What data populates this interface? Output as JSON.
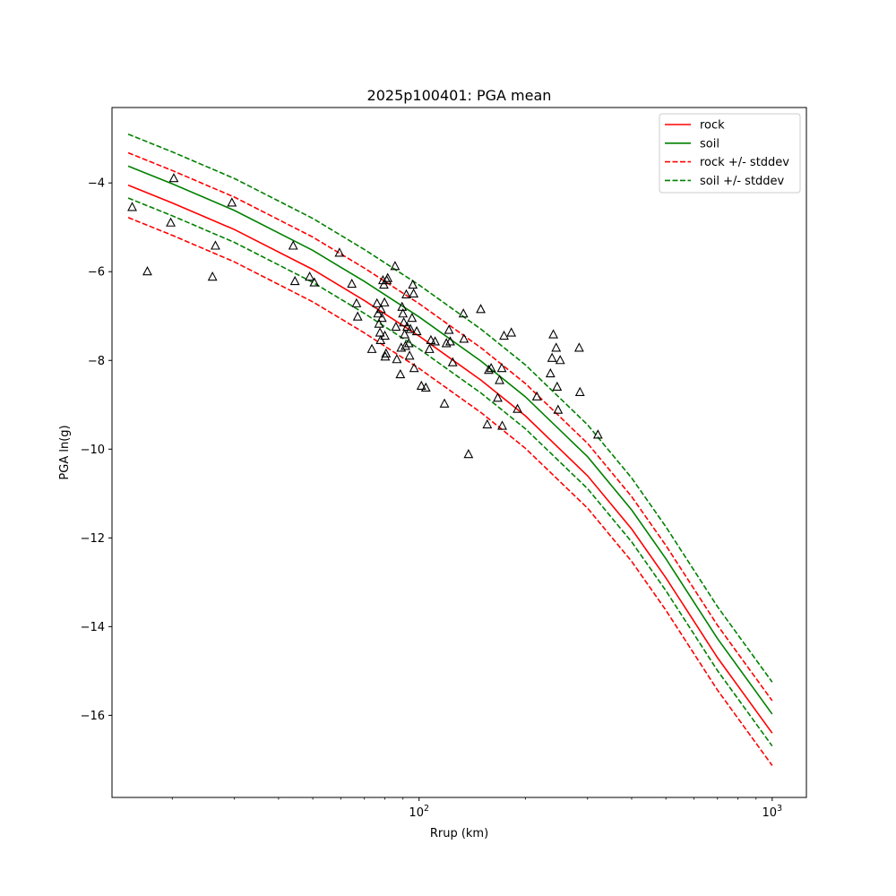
{
  "chart_data": {
    "type": "scatter",
    "title": "2025p100401: PGA mean",
    "xlabel": "Rrup (km)",
    "ylabel": "PGA ln(g)",
    "xscale": "log",
    "xlim": [
      13.5,
      1250
    ],
    "ylim": [
      -17.85,
      -2.3
    ],
    "x_ticks": [
      {
        "value": 100,
        "base": "10",
        "exp": "2"
      },
      {
        "value": 1000,
        "base": "10",
        "exp": "3"
      }
    ],
    "y_ticks": [
      {
        "value": -4,
        "label": "−4"
      },
      {
        "value": -6,
        "label": "−6"
      },
      {
        "value": -8,
        "label": "−8"
      },
      {
        "value": -10,
        "label": "−10"
      },
      {
        "value": -12,
        "label": "−12"
      },
      {
        "value": -14,
        "label": "−14"
      },
      {
        "value": -16,
        "label": "−16"
      }
    ],
    "grid": false,
    "legend_position": "top-right",
    "legend": [
      {
        "label": "rock",
        "color": "#ff0000",
        "dash": "solid"
      },
      {
        "label": "soil",
        "color": "#008000",
        "dash": "solid"
      },
      {
        "label": "rock +/- stddev",
        "color": "#ff0000",
        "dash": "dashed"
      },
      {
        "label": "soil +/- stddev",
        "color": "#008000",
        "dash": "dashed"
      }
    ],
    "series": [
      {
        "name": "rock",
        "color": "#ff0000",
        "dash": "solid",
        "x": [
          15,
          20,
          30,
          50,
          70,
          100,
          150,
          200,
          300,
          400,
          500,
          700,
          1000
        ],
        "y": [
          -4.05,
          -4.45,
          -5.05,
          -5.95,
          -6.65,
          -7.45,
          -8.45,
          -9.25,
          -10.6,
          -11.8,
          -12.9,
          -14.7,
          -16.4
        ]
      },
      {
        "name": "soil",
        "color": "#008000",
        "dash": "solid",
        "x": [
          15,
          20,
          30,
          50,
          70,
          100,
          150,
          200,
          300,
          400,
          500,
          700,
          1000
        ],
        "y": [
          -3.62,
          -4.02,
          -4.62,
          -5.52,
          -6.22,
          -7.02,
          -8.02,
          -8.82,
          -10.17,
          -11.37,
          -12.47,
          -14.27,
          -15.97
        ]
      },
      {
        "name": "rock +/- stddev",
        "color": "#ff0000",
        "dash": "dashed",
        "x": [
          15,
          20,
          30,
          50,
          70,
          100,
          150,
          200,
          300,
          400,
          500,
          700,
          1000
        ],
        "y": [
          -3.32,
          -3.72,
          -4.32,
          -5.22,
          -5.92,
          -6.72,
          -7.72,
          -8.52,
          -9.87,
          -11.07,
          -12.17,
          -13.97,
          -15.67
        ]
      },
      {
        "name": "rock +/- stddev",
        "color": "#ff0000",
        "dash": "dashed",
        "x": [
          15,
          20,
          30,
          50,
          70,
          100,
          150,
          200,
          300,
          400,
          500,
          700,
          1000
        ],
        "y": [
          -4.78,
          -5.18,
          -5.78,
          -6.68,
          -7.38,
          -8.18,
          -9.18,
          -9.98,
          -11.33,
          -12.53,
          -13.63,
          -15.43,
          -17.13
        ]
      },
      {
        "name": "soil +/- stddev",
        "color": "#008000",
        "dash": "dashed",
        "x": [
          15,
          20,
          30,
          50,
          70,
          100,
          150,
          200,
          300,
          400,
          500,
          700,
          1000
        ],
        "y": [
          -2.9,
          -3.3,
          -3.9,
          -4.8,
          -5.5,
          -6.3,
          -7.3,
          -8.1,
          -9.45,
          -10.65,
          -11.75,
          -13.55,
          -15.25
        ]
      },
      {
        "name": "soil +/- stddev",
        "color": "#008000",
        "dash": "dashed",
        "x": [
          15,
          20,
          30,
          50,
          70,
          100,
          150,
          200,
          300,
          400,
          500,
          700,
          1000
        ],
        "y": [
          -4.34,
          -4.74,
          -5.34,
          -6.24,
          -6.94,
          -7.74,
          -8.74,
          -9.54,
          -10.89,
          -12.09,
          -13.19,
          -14.99,
          -16.69
        ]
      }
    ],
    "observations": {
      "marker": "triangle",
      "color": "#000000",
      "points": [
        [
          15.4,
          -4.55
        ],
        [
          17.0,
          -6.0
        ],
        [
          19.8,
          -4.9
        ],
        [
          20.2,
          -3.9
        ],
        [
          26.0,
          -6.12
        ],
        [
          26.5,
          -5.42
        ],
        [
          29.5,
          -4.45
        ],
        [
          44.0,
          -5.42
        ],
        [
          44.5,
          -6.22
        ],
        [
          49.0,
          -6.12
        ],
        [
          50.5,
          -6.25
        ],
        [
          59.5,
          -5.58
        ],
        [
          64.5,
          -6.28
        ],
        [
          66.5,
          -6.72
        ],
        [
          67.0,
          -7.02
        ],
        [
          73.5,
          -7.75
        ],
        [
          76.0,
          -6.72
        ],
        [
          76.5,
          -6.95
        ],
        [
          77.0,
          -7.18
        ],
        [
          77.5,
          -7.38
        ],
        [
          77.8,
          -7.55
        ],
        [
          78.0,
          -6.85
        ],
        [
          78.5,
          -7.05
        ],
        [
          79.0,
          -6.2
        ],
        [
          79.5,
          -6.3
        ],
        [
          79.8,
          -6.7
        ],
        [
          80.0,
          -7.45
        ],
        [
          80.2,
          -7.92
        ],
        [
          80.6,
          -7.85
        ],
        [
          81.0,
          -6.2
        ],
        [
          81.5,
          -6.15
        ],
        [
          85.5,
          -5.88
        ],
        [
          86.0,
          -7.25
        ],
        [
          86.5,
          -7.98
        ],
        [
          88.5,
          -8.32
        ],
        [
          89.0,
          -7.72
        ],
        [
          89.5,
          -6.8
        ],
        [
          90.0,
          -6.95
        ],
        [
          90.5,
          -7.15
        ],
        [
          91.0,
          -7.42
        ],
        [
          91.5,
          -7.68
        ],
        [
          92.0,
          -6.52
        ],
        [
          92.5,
          -7.25
        ],
        [
          93.5,
          -7.62
        ],
        [
          94.0,
          -7.9
        ],
        [
          94.5,
          -7.3
        ],
        [
          95.5,
          -7.05
        ],
        [
          96.0,
          -6.3
        ],
        [
          96.5,
          -6.5
        ],
        [
          96.8,
          -8.18
        ],
        [
          98.5,
          -7.35
        ],
        [
          101.5,
          -8.58
        ],
        [
          104.5,
          -8.62
        ],
        [
          107.0,
          -7.75
        ],
        [
          108.0,
          -7.55
        ],
        [
          111.0,
          -7.58
        ],
        [
          118.0,
          -8.98
        ],
        [
          119.5,
          -7.62
        ],
        [
          121.5,
          -7.32
        ],
        [
          122.5,
          -7.58
        ],
        [
          124.5,
          -8.05
        ],
        [
          133.5,
          -6.95
        ],
        [
          134.0,
          -7.52
        ],
        [
          138.0,
          -10.12
        ],
        [
          149.5,
          -6.85
        ],
        [
          156.0,
          -9.45
        ],
        [
          157.5,
          -8.22
        ],
        [
          160.0,
          -8.18
        ],
        [
          167.0,
          -8.85
        ],
        [
          169.0,
          -8.45
        ],
        [
          171.5,
          -8.18
        ],
        [
          172.0,
          -9.48
        ],
        [
          174.0,
          -7.45
        ],
        [
          182.5,
          -7.38
        ],
        [
          190.0,
          -9.1
        ],
        [
          215.5,
          -8.82
        ],
        [
          235.5,
          -8.3
        ],
        [
          238.0,
          -7.95
        ],
        [
          240.0,
          -7.42
        ],
        [
          244.5,
          -7.72
        ],
        [
          246.0,
          -8.6
        ],
        [
          247.5,
          -9.12
        ],
        [
          251.0,
          -8.0
        ],
        [
          284.0,
          -7.72
        ],
        [
          285.5,
          -8.72
        ],
        [
          321.0,
          -9.68
        ]
      ]
    }
  }
}
